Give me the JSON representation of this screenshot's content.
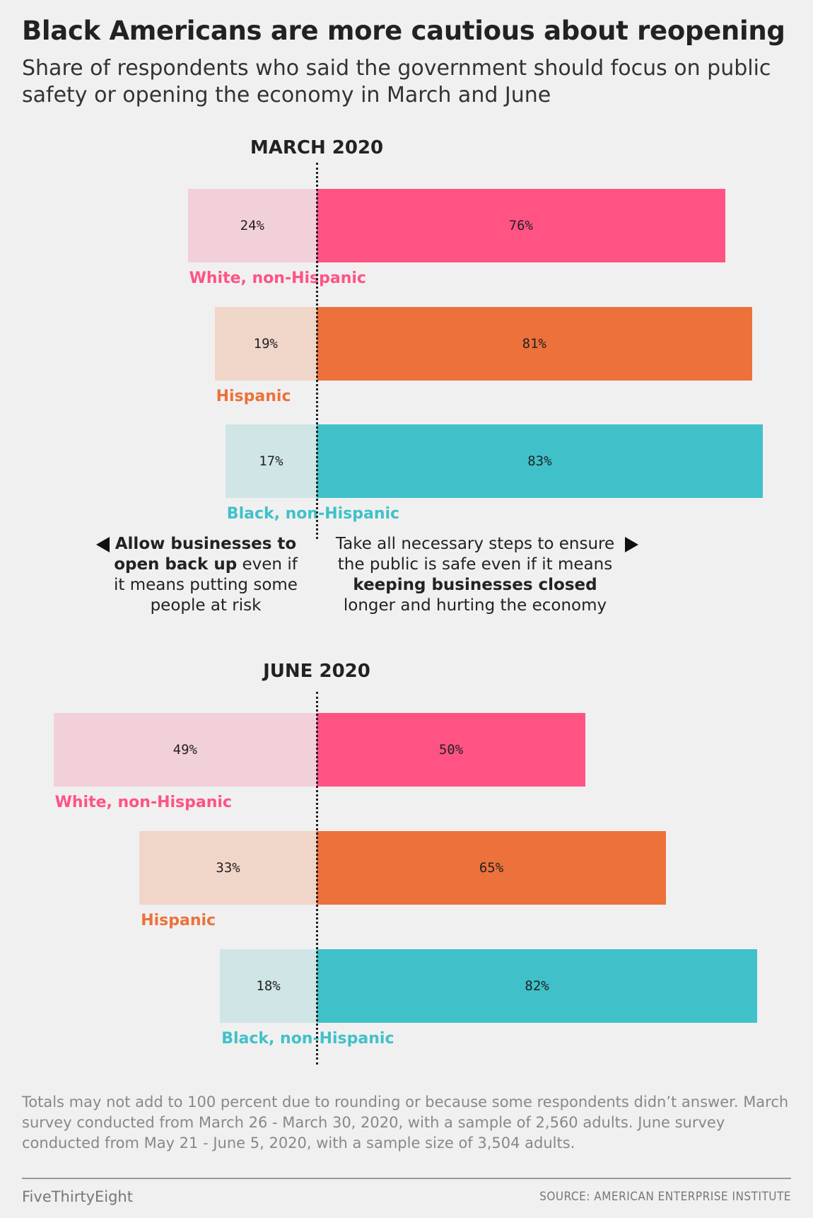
{
  "title": "Black Americans are more cautious about reopening",
  "subtitle": "Share of respondents who said the government should focus on public safety or opening the economy in March and June",
  "legend": {
    "left_parts": [
      {
        "text": "Allow businesses to open back up",
        "bold": true
      },
      {
        "text": " even if it means putting some people at risk",
        "bold": false
      }
    ],
    "right_parts": [
      {
        "text": "Take all necessary steps to ensure the public is safe even if it means ",
        "bold": false
      },
      {
        "text": "keeping businesses closed",
        "bold": true
      },
      {
        "text": " longer and hurting the economy",
        "bold": false
      }
    ]
  },
  "colors": {
    "white": {
      "strong": "#ff5384",
      "light": "#f2d0da"
    },
    "hispanic": {
      "strong": "#ed713a",
      "light": "#f0d5c9"
    },
    "black": {
      "strong": "#40c1c9",
      "light": "#cfe5e6"
    }
  },
  "chart_data": [
    {
      "type": "bar",
      "title": "MARCH 2020",
      "orientation": "horizontal diverging",
      "series_left": "Allow businesses to open back up",
      "series_right": "Take all necessary steps to ensure the public is safe",
      "groups": [
        {
          "name": "White, non-Hispanic",
          "color_key": "white",
          "open": 24,
          "safe": 76
        },
        {
          "name": "Hispanic",
          "color_key": "hispanic",
          "open": 19,
          "safe": 81
        },
        {
          "name": "Black, non-Hispanic",
          "color_key": "black",
          "open": 17,
          "safe": 83
        }
      ],
      "unit": "%"
    },
    {
      "type": "bar",
      "title": "JUNE 2020",
      "orientation": "horizontal diverging",
      "series_left": "Allow businesses to open back up",
      "series_right": "Take all necessary steps to ensure the public is safe",
      "groups": [
        {
          "name": "White, non-Hispanic",
          "color_key": "white",
          "open": 49,
          "safe": 50
        },
        {
          "name": "Hispanic",
          "color_key": "hispanic",
          "open": 33,
          "safe": 65
        },
        {
          "name": "Black, non-Hispanic",
          "color_key": "black",
          "open": 18,
          "safe": 82
        }
      ],
      "unit": "%"
    }
  ],
  "footnote": "Totals may not add to 100 percent due to rounding or because some respondents didn’t answer. March survey conducted from March 26 - March 30, 2020, with a sample of 2,560 adults. June survey conducted from May 21 - June 5, 2020, with a sample size of 3,504 adults.",
  "brand": "FiveThirtyEight",
  "source": "SOURCE: AMERICAN ENTERPRISE INSTITUTE"
}
